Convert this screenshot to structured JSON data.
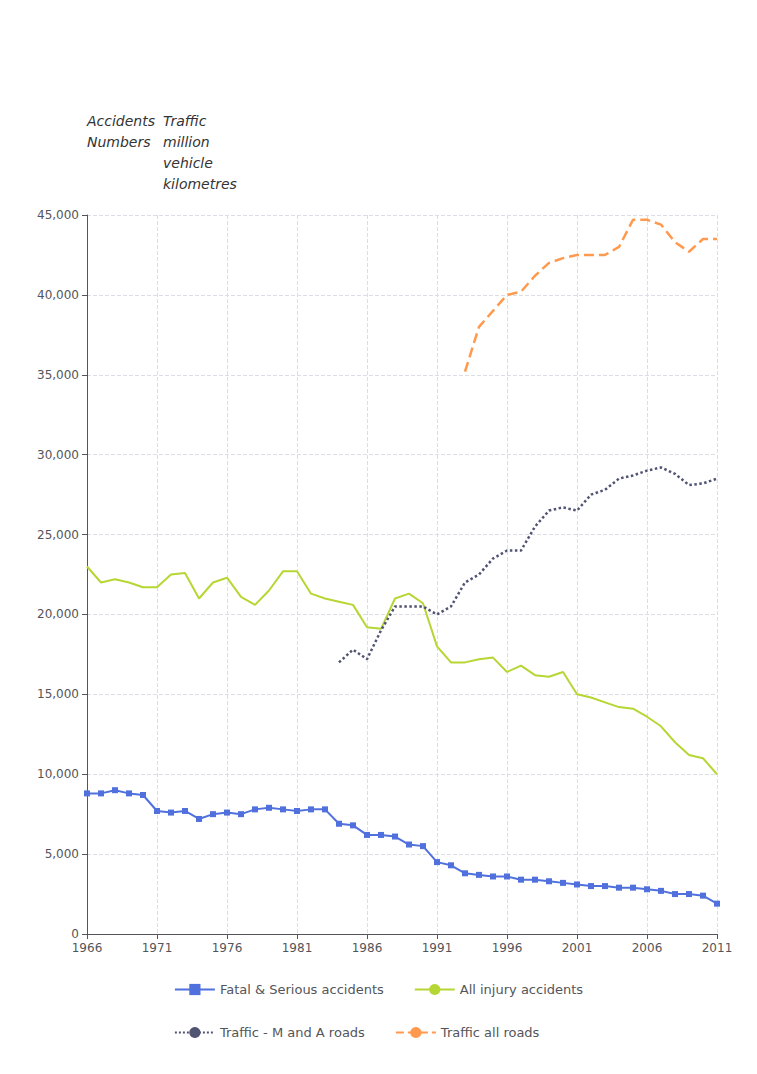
{
  "chart_data": {
    "type": "line",
    "annotations": [
      "Accidents\nNumbers",
      "Traffic\nmillion\nvehicle\nkilometres"
    ],
    "x": [
      1966,
      1967,
      1968,
      1969,
      1970,
      1971,
      1972,
      1973,
      1974,
      1975,
      1976,
      1977,
      1978,
      1979,
      1980,
      1981,
      1982,
      1983,
      1984,
      1985,
      1986,
      1987,
      1988,
      1989,
      1990,
      1991,
      1992,
      1993,
      1994,
      1995,
      1996,
      1997,
      1998,
      1999,
      2000,
      2001,
      2002,
      2003,
      2004,
      2005,
      2006,
      2007,
      2008,
      2009,
      2010,
      2011
    ],
    "series": [
      {
        "name": "Fatal & Serious accidents",
        "marker": "square",
        "line_style": "solid",
        "values": [
          8800,
          8800,
          9000,
          8800,
          8700,
          7700,
          7600,
          7700,
          7200,
          7500,
          7600,
          7500,
          7800,
          7900,
          7800,
          7700,
          7800,
          7800,
          6900,
          6800,
          6200,
          6200,
          6100,
          5600,
          5500,
          4500,
          4300,
          3800,
          3700,
          3600,
          3600,
          3400,
          3400,
          3300,
          3200,
          3100,
          3000,
          3000,
          2900,
          2900,
          2800,
          2700,
          2500,
          2500,
          2400,
          1900
        ]
      },
      {
        "name": "All injury accidents",
        "line_style": "solid",
        "values": [
          23000,
          22000,
          22200,
          22000,
          21700,
          21700,
          22500,
          22600,
          21000,
          22000,
          22300,
          21100,
          20600,
          21500,
          22700,
          22700,
          21300,
          21000,
          20800,
          20600,
          19200,
          19100,
          21000,
          21300,
          20700,
          18000,
          17000,
          17000,
          17200,
          17300,
          16400,
          16800,
          16200,
          16100,
          16400,
          15000,
          14800,
          14500,
          14200,
          14100,
          13600,
          13000,
          12000,
          11200,
          11000,
          10000
        ]
      },
      {
        "name": "Traffic - M and A roads",
        "line_style": "dotted",
        "values": [
          null,
          null,
          null,
          null,
          null,
          null,
          null,
          null,
          null,
          null,
          null,
          null,
          null,
          null,
          null,
          null,
          null,
          null,
          17000,
          17800,
          17200,
          19000,
          20500,
          20500,
          20500,
          20000,
          20500,
          22000,
          22500,
          23500,
          24000,
          24000,
          25500,
          26500,
          26700,
          26500,
          27500,
          27800,
          28500,
          28700,
          29000,
          29200,
          28800,
          28100,
          28200,
          28500
        ]
      },
      {
        "name": "Traffic all roads",
        "line_style": "dashed",
        "values": [
          null,
          null,
          null,
          null,
          null,
          null,
          null,
          null,
          null,
          null,
          null,
          null,
          null,
          null,
          null,
          null,
          null,
          null,
          null,
          null,
          null,
          null,
          null,
          null,
          null,
          null,
          null,
          35200,
          38000,
          39000,
          40000,
          40200,
          41200,
          42000,
          42300,
          42500,
          42500,
          42500,
          43000,
          44700,
          44700,
          44400,
          43300,
          42700,
          43500,
          43500
        ]
      }
    ],
    "xlim": [
      1966,
      2011
    ],
    "xticks": [
      1966,
      1971,
      1976,
      1981,
      1986,
      1991,
      1996,
      2001,
      2006,
      2011
    ],
    "ylim": [
      0,
      45000
    ],
    "yticks": [
      0,
      {
        "value": 5000,
        "label": "5,000"
      },
      {
        "value": 10000,
        "label": "10,000"
      },
      {
        "value": 15000,
        "label": "15,000"
      },
      {
        "value": 20000,
        "label": "20,000"
      },
      {
        "value": 25000,
        "label": "25,000"
      },
      {
        "value": 30000,
        "label": "30,000"
      },
      {
        "value": 35000,
        "label": "35,000"
      },
      {
        "value": 40000,
        "label": "40,000"
      },
      {
        "value": 45000,
        "label": "45,000"
      }
    ],
    "grid": true,
    "legend": "bottom"
  }
}
